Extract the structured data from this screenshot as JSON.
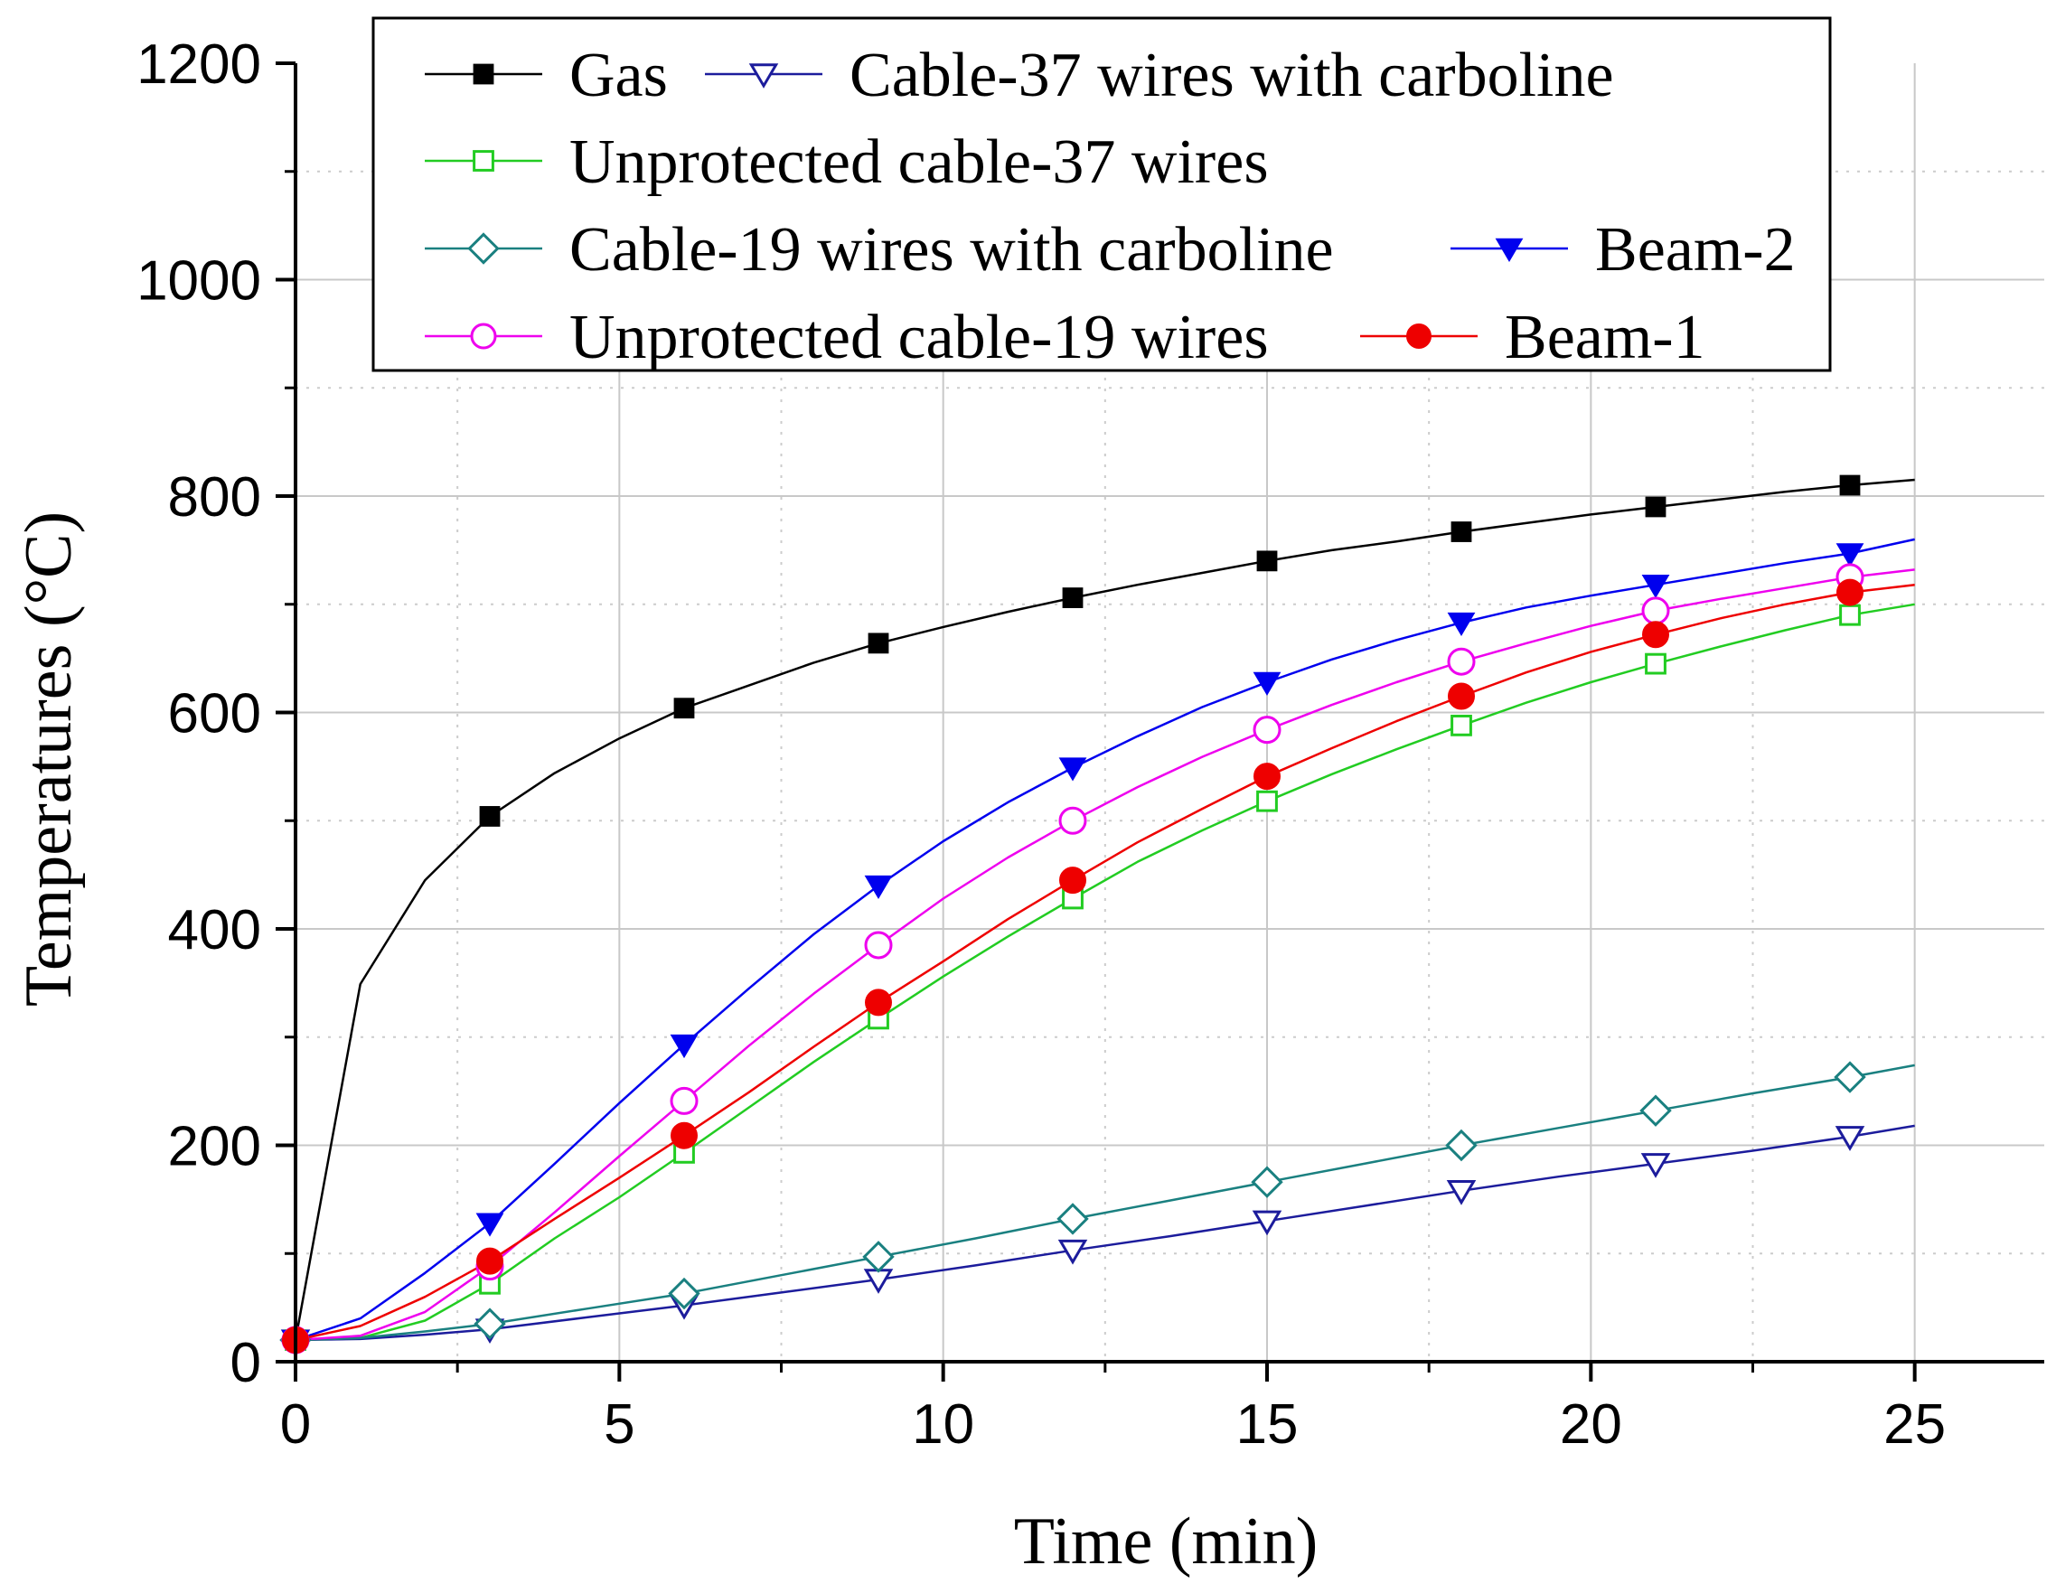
{
  "chart_data": {
    "type": "line",
    "title": "",
    "xlabel": "Time (min)",
    "ylabel": "Temperatures (°C)",
    "xlim": [
      0,
      27
    ],
    "ylim": [
      0,
      1200
    ],
    "xticks": [
      "0",
      "5",
      "10",
      "15",
      "20",
      "25"
    ],
    "yticks": [
      "0",
      "200",
      "400",
      "600",
      "800",
      "1000",
      "1200"
    ],
    "grid": true,
    "legend_position": "top",
    "series": [
      {
        "name": "Gas",
        "color": "#000000",
        "marker": "square-filled",
        "marker_x": [
          0,
          3,
          6,
          9,
          12,
          15,
          18,
          21,
          24
        ],
        "marker_y": [
          20,
          504,
          604,
          664,
          706,
          740,
          767,
          790,
          810
        ],
        "curve_x": [
          0,
          1,
          2,
          3,
          4,
          5,
          6,
          7,
          8,
          9,
          10,
          11,
          12,
          13,
          14,
          15,
          16,
          17,
          18,
          19,
          20,
          21,
          22,
          23,
          24,
          25
        ],
        "curve_y": [
          20,
          349,
          445,
          504,
          544,
          576,
          604,
          625,
          646,
          664,
          679,
          693,
          706,
          718,
          729,
          740,
          750,
          758,
          767,
          775,
          783,
          790,
          797,
          804,
          810,
          815
        ]
      },
      {
        "name": "Cable-37 wires with carboline",
        "color": "#1c1c9c",
        "marker": "triangle-down-open",
        "marker_x": [
          0,
          3,
          6,
          9,
          12,
          15,
          18,
          21,
          24
        ],
        "marker_y": [
          20,
          30,
          52,
          76,
          103,
          130,
          158,
          183,
          208
        ],
        "curve_x": [
          0,
          1,
          2,
          3,
          4.5,
          6,
          7.5,
          9,
          10.5,
          12,
          13.5,
          15,
          16.5,
          18,
          19.5,
          21,
          22.5,
          24,
          25
        ],
        "curve_y": [
          20,
          21,
          25,
          30,
          41,
          52,
          64,
          76,
          89,
          103,
          116,
          130,
          144,
          158,
          171,
          183,
          195,
          208,
          218
        ]
      },
      {
        "name": "Unprotected cable-37 wires",
        "color": "#22cc22",
        "marker": "square-open",
        "marker_x": [
          0,
          3,
          6,
          9,
          12,
          15,
          18,
          21,
          24
        ],
        "marker_y": [
          20,
          72,
          193,
          317,
          428,
          518,
          588,
          645,
          690
        ],
        "curve_x": [
          0,
          1,
          2,
          3,
          4,
          5,
          6,
          7,
          8,
          9,
          10,
          11,
          12,
          13,
          14,
          15,
          16,
          17,
          18,
          19,
          20,
          21,
          22,
          23,
          24,
          25
        ],
        "curve_y": [
          20,
          22,
          38,
          72,
          114,
          152,
          193,
          235,
          277,
          317,
          356,
          393,
          428,
          462,
          491,
          518,
          543,
          566,
          588,
          609,
          628,
          645,
          661,
          676,
          690,
          700
        ]
      },
      {
        "name": "Cable-19 wires with  carboline",
        "color": "#1a8080",
        "marker": "diamond-open",
        "marker_x": [
          0,
          3,
          6,
          9,
          12,
          15,
          18,
          21,
          24
        ],
        "marker_y": [
          20,
          35,
          63,
          97,
          132,
          166,
          200,
          232,
          263
        ],
        "curve_x": [
          0,
          1,
          2,
          3,
          4.5,
          6,
          7.5,
          9,
          10.5,
          12,
          13.5,
          15,
          16.5,
          18,
          19.5,
          21,
          22.5,
          24,
          25
        ],
        "curve_y": [
          20,
          22,
          28,
          35,
          49,
          63,
          80,
          97,
          114,
          132,
          149,
          166,
          183,
          200,
          216,
          232,
          248,
          263,
          274
        ]
      },
      {
        "name": "Beam-2",
        "color": "#0000ee",
        "marker": "triangle-down-filled",
        "marker_x": [
          0,
          3,
          6,
          9,
          12,
          15,
          18,
          21,
          24
        ],
        "marker_y": [
          20,
          128,
          293,
          440,
          549,
          628,
          683,
          718,
          747
        ],
        "curve_x": [
          0,
          1,
          2,
          3,
          4,
          5,
          6,
          7,
          8,
          9,
          10,
          11,
          12,
          13,
          14,
          15,
          16,
          17,
          18,
          19,
          20,
          21,
          22,
          23,
          24,
          25
        ],
        "curve_y": [
          20,
          40,
          82,
          128,
          183,
          239,
          293,
          345,
          395,
          440,
          481,
          517,
          549,
          578,
          605,
          628,
          649,
          667,
          683,
          697,
          708,
          718,
          728,
          738,
          747,
          760
        ]
      },
      {
        "name": "Unprotected cable-19 wires",
        "color": "#ee00ee",
        "marker": "circle-open",
        "marker_x": [
          0,
          3,
          6,
          9,
          12,
          15,
          18,
          21,
          24
        ],
        "marker_y": [
          20,
          88,
          241,
          385,
          500,
          584,
          647,
          694,
          725
        ],
        "curve_x": [
          0,
          1,
          2,
          3,
          4,
          5,
          6,
          7,
          8,
          9,
          10,
          11,
          12,
          13,
          14,
          15,
          16,
          17,
          18,
          19,
          20,
          21,
          22,
          23,
          24,
          25
        ],
        "curve_y": [
          20,
          24,
          46,
          88,
          138,
          190,
          241,
          292,
          340,
          385,
          428,
          466,
          500,
          531,
          559,
          584,
          607,
          628,
          647,
          664,
          680,
          694,
          705,
          715,
          725,
          732
        ]
      },
      {
        "name": "Beam-1",
        "color": "#ee0000",
        "marker": "circle-filled",
        "marker_x": [
          0,
          3,
          6,
          9,
          12,
          15,
          18,
          21,
          24
        ],
        "marker_y": [
          20,
          93,
          209,
          332,
          445,
          541,
          615,
          672,
          711
        ],
        "curve_x": [
          0,
          1,
          2,
          3,
          4,
          5,
          6,
          7,
          8,
          9,
          10,
          11,
          12,
          13,
          14,
          15,
          16,
          17,
          18,
          19,
          20,
          21,
          22,
          23,
          24,
          25
        ],
        "curve_y": [
          20,
          33,
          60,
          93,
          132,
          170,
          209,
          249,
          291,
          332,
          370,
          409,
          445,
          480,
          511,
          541,
          567,
          592,
          615,
          637,
          656,
          672,
          687,
          700,
          711,
          718
        ]
      }
    ]
  }
}
